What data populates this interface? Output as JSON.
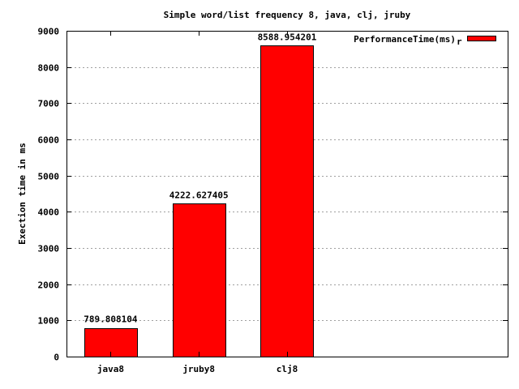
{
  "chart_data": {
    "type": "bar",
    "title": "Simple word/list frequency 8, java, clj, jruby",
    "xlabel": "",
    "ylabel": "Exection time in ms",
    "categories": [
      "java8",
      "jruby8",
      "clj8"
    ],
    "series": [
      {
        "name": "PerformanceTime(ms)",
        "values": [
          789.808104,
          4222.627405,
          8588.954201
        ],
        "color": "#ff0000"
      }
    ],
    "data_labels": [
      "789.808104",
      "4222.627405",
      "8588.954201"
    ],
    "ylim": [
      0,
      9000
    ],
    "yticks": [
      0,
      1000,
      2000,
      3000,
      4000,
      5000,
      6000,
      7000,
      8000,
      9000
    ],
    "x_slots": 5,
    "grid": "horizontal dotted",
    "legend_position": "top-right",
    "legend_suffix": "r"
  }
}
